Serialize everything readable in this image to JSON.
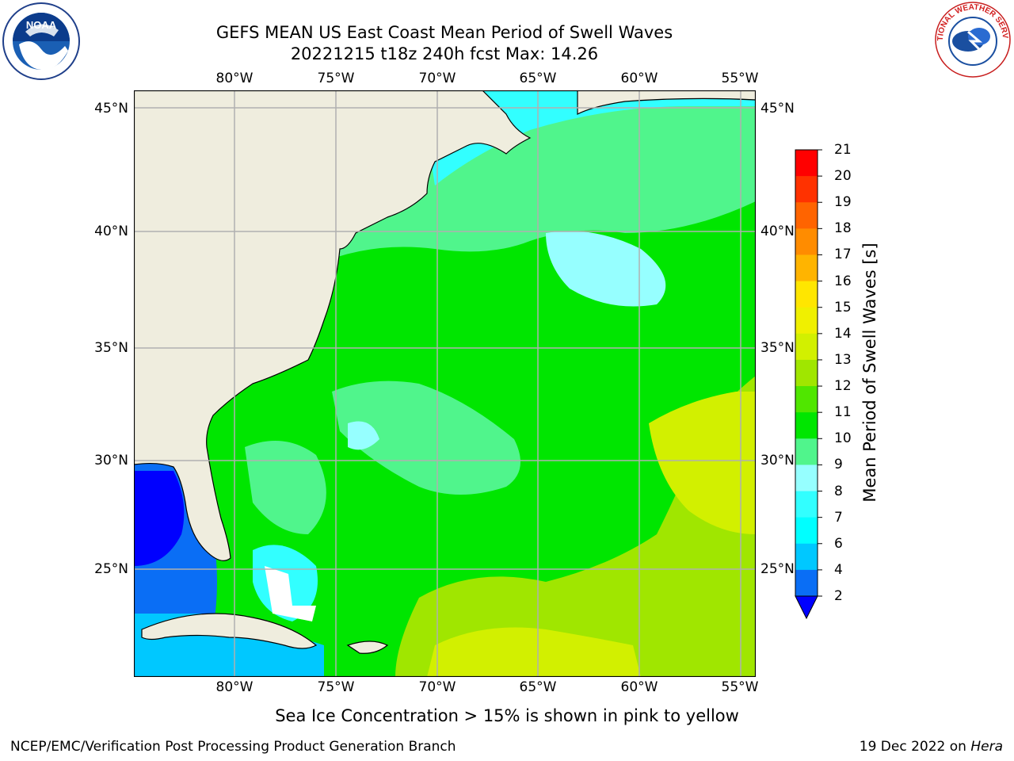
{
  "title": {
    "line1": "GEFS MEAN US East Coast Mean Period of Swell Waves",
    "line2": "20221215 t18z 240h fcst   Max: 14.26"
  },
  "map": {
    "longitude_labels": [
      "80°W",
      "75°W",
      "70°W",
      "65°W",
      "60°W",
      "55°W"
    ],
    "latitude_labels": [
      "45°N",
      "40°N",
      "35°N",
      "30°N",
      "25°N"
    ],
    "land_color": "#efedde",
    "coastline_color": "#000000",
    "grid_color": "#b0b0b0"
  },
  "colorbar": {
    "label": "Mean Period of Swell Waves [s]",
    "ticks": [
      "2",
      "4",
      "6",
      "7",
      "8",
      "9",
      "10",
      "11",
      "12",
      "13",
      "14",
      "15",
      "16",
      "17",
      "18",
      "19",
      "20",
      "21"
    ],
    "colors": [
      "#0000ff",
      "#0a6ef5",
      "#00c8ff",
      "#00ffff",
      "#32ffff",
      "#96ffff",
      "#50f58c",
      "#00e600",
      "#50e600",
      "#a0e600",
      "#d2f000",
      "#f0f000",
      "#ffe600",
      "#ffb400",
      "#ff8c00",
      "#ff6400",
      "#ff3200",
      "#ff0000"
    ]
  },
  "footnote": "Sea Ice Concentration > 15% is shown in pink to yellow",
  "credit": "NCEP/EMC/Verification Post Processing Product Generation Branch",
  "date_text": "19 Dec 2022 on ",
  "date_machine": "Hera",
  "logos": {
    "left": "NOAA",
    "right": "NATIONAL WEATHER SERVICE"
  }
}
